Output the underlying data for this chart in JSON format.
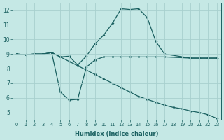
{
  "xlabel": "Humidex (Indice chaleur)",
  "bg_color": "#c5e8e5",
  "grid_color": "#a8d0ce",
  "line_color": "#1a6060",
  "xlim": [
    -0.5,
    23.5
  ],
  "ylim": [
    4.5,
    12.5
  ],
  "xticks": [
    0,
    1,
    2,
    3,
    4,
    5,
    6,
    7,
    8,
    9,
    10,
    11,
    12,
    13,
    14,
    15,
    16,
    17,
    18,
    19,
    20,
    21,
    22,
    23
  ],
  "yticks": [
    5,
    6,
    7,
    8,
    9,
    10,
    11,
    12
  ],
  "line1_x": [
    0,
    1,
    2,
    3,
    4,
    5,
    6,
    7,
    8,
    9,
    10,
    11,
    12,
    13,
    14,
    15,
    16,
    17,
    20,
    21,
    22,
    23
  ],
  "line1_y": [
    9.0,
    8.95,
    9.0,
    9.0,
    9.1,
    8.8,
    8.85,
    8.25,
    8.85,
    9.7,
    10.3,
    11.1,
    12.1,
    12.05,
    12.1,
    11.5,
    9.85,
    9.0,
    8.72,
    8.72,
    8.72,
    8.72
  ],
  "line2_x": [
    0,
    1,
    2,
    3,
    4,
    5,
    6,
    7,
    8,
    9,
    10,
    11,
    12,
    13,
    14,
    15,
    16,
    17,
    20,
    21,
    22,
    23
  ],
  "line2_y": [
    9.0,
    8.95,
    9.0,
    9.0,
    9.1,
    6.4,
    5.85,
    5.9,
    8.1,
    8.6,
    8.8,
    8.8,
    8.8,
    8.8,
    8.8,
    8.8,
    8.8,
    8.8,
    8.72,
    8.72,
    8.72,
    8.72
  ],
  "line3_x": [
    0,
    1,
    2,
    3,
    4,
    5,
    6,
    7,
    8,
    9,
    10,
    11,
    12,
    13,
    14,
    15,
    16,
    17,
    18,
    19,
    20,
    21,
    22,
    23
  ],
  "line3_y": [
    9.0,
    8.95,
    9.0,
    9.0,
    9.1,
    8.8,
    8.5,
    8.2,
    7.9,
    7.6,
    7.3,
    7.0,
    6.7,
    6.4,
    6.1,
    5.9,
    5.7,
    5.5,
    5.35,
    5.25,
    5.1,
    5.0,
    4.85,
    4.6
  ]
}
